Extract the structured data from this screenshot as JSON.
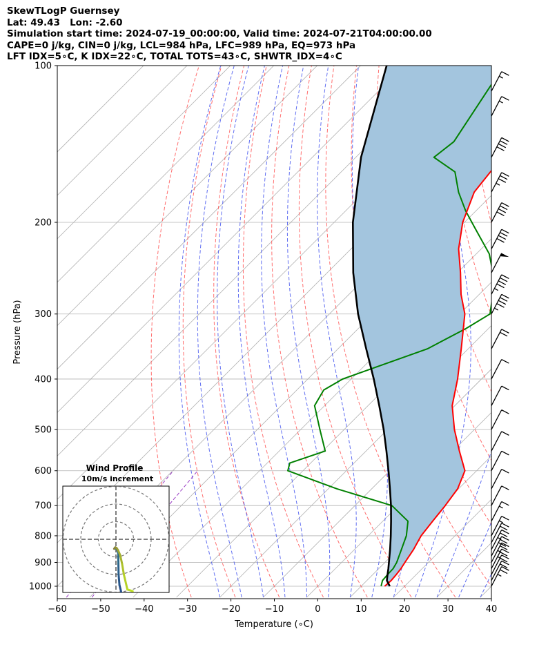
{
  "header": {
    "line1": "SkewTLogP Guernsey",
    "line2": "Lat: 49.43   Lon: -2.60",
    "line3": "Simulation start time: 2024-07-19_00:00:00, Valid time: 2024-07-21T04:00:00.00",
    "line4": "CAPE=0 j/kg, CIN=0 j/kg, LCL=984 hPa, LFC=989 hPa, EQ=973 hPa",
    "line5": "LFT IDX=5∘C, K IDX=22∘C, TOTAL TOTS=43∘C, SHWTR_IDX=4∘C"
  },
  "inset": {
    "title": "Wind Profile",
    "subtitle": "10m/s increment"
  },
  "colors": {
    "temperature": "#ff0000",
    "dewpoint": "#008000",
    "parcel": "#000000",
    "shade": "#a3c5de",
    "dry_adiabat": "#ff5555",
    "moist_adiabat": "#4455ee",
    "mixing_ratio": "#9a3cc4",
    "isotherm": "#b0b0b0"
  },
  "chart_data": {
    "type": "line",
    "title": "",
    "xlabel": "Temperature (∘C)",
    "ylabel": "Pressure (hPa)",
    "xlim": [
      -60,
      40
    ],
    "ylim": [
      1050,
      100
    ],
    "y_scale": "log",
    "grid": true,
    "x_ticks": [
      "−60",
      "−50",
      "−40",
      "−30",
      "−20",
      "−10",
      "0",
      "10",
      "20",
      "30",
      "40"
    ],
    "x_tick_values": [
      -60,
      -50,
      -40,
      -30,
      -20,
      -10,
      0,
      10,
      20,
      30,
      40
    ],
    "y_ticks": [
      "100",
      "200",
      "300",
      "400",
      "500",
      "600",
      "700",
      "800",
      "900",
      "1000"
    ],
    "y_tick_values": [
      100,
      200,
      300,
      400,
      500,
      600,
      700,
      800,
      900,
      1000
    ],
    "series": [
      {
        "key": "temperature",
        "points": [
          [
            1000,
            15.4
          ],
          [
            975,
            15.6
          ],
          [
            950,
            15.4
          ],
          [
            925,
            15.1
          ],
          [
            900,
            14.6
          ],
          [
            850,
            13.6
          ],
          [
            800,
            12.2
          ],
          [
            750,
            11.5
          ],
          [
            700,
            10.8
          ],
          [
            650,
            9.8
          ],
          [
            600,
            7.3
          ],
          [
            550,
            1.5
          ],
          [
            500,
            -4.6
          ],
          [
            450,
            -10.6
          ],
          [
            400,
            -15.5
          ],
          [
            350,
            -21.6
          ],
          [
            300,
            -28.8
          ],
          [
            275,
            -34.2
          ],
          [
            250,
            -39.3
          ],
          [
            225,
            -45.2
          ],
          [
            200,
            -50.4
          ],
          [
            175,
            -54.7
          ],
          [
            150,
            -56.3
          ],
          [
            125,
            -59.0
          ],
          [
            100,
            -60.4
          ]
        ]
      },
      {
        "key": "dewpoint",
        "points": [
          [
            1000,
            14.6
          ],
          [
            975,
            13.6
          ],
          [
            950,
            13.4
          ],
          [
            925,
            13.3
          ],
          [
            900,
            12.7
          ],
          [
            850,
            10.8
          ],
          [
            800,
            8.8
          ],
          [
            750,
            5.8
          ],
          [
            700,
            -1.5
          ],
          [
            650,
            -18.0
          ],
          [
            600,
            -33.5
          ],
          [
            580,
            -34.8
          ],
          [
            550,
            -29.4
          ],
          [
            500,
            -35.6
          ],
          [
            450,
            -42.3
          ],
          [
            420,
            -43.8
          ],
          [
            400,
            -42.0
          ],
          [
            380,
            -37.2
          ],
          [
            350,
            -29.4
          ],
          [
            320,
            -25.2
          ],
          [
            300,
            -23.0
          ],
          [
            260,
            -29.4
          ],
          [
            230,
            -37.0
          ],
          [
            205,
            -46.3
          ],
          [
            190,
            -52.4
          ],
          [
            175,
            -58.3
          ],
          [
            160,
            -63.8
          ],
          [
            150,
            -72.0
          ],
          [
            140,
            -71.0
          ],
          [
            100,
            -77.0
          ]
        ]
      },
      {
        "key": "parcel",
        "points": [
          [
            1000,
            16.6
          ],
          [
            975,
            14.6
          ],
          [
            950,
            13.4
          ],
          [
            925,
            12.2
          ],
          [
            900,
            10.9
          ],
          [
            850,
            8.2
          ],
          [
            800,
            5.2
          ],
          [
            750,
            1.9
          ],
          [
            700,
            -1.7
          ],
          [
            650,
            -5.8
          ],
          [
            600,
            -10.3
          ],
          [
            550,
            -15.3
          ],
          [
            500,
            -20.9
          ],
          [
            450,
            -27.4
          ],
          [
            400,
            -34.8
          ],
          [
            350,
            -43.5
          ],
          [
            300,
            -53.4
          ],
          [
            250,
            -64.0
          ],
          [
            200,
            -75.7
          ],
          [
            150,
            -88.8
          ],
          [
            100,
            -104.0
          ]
        ]
      }
    ],
    "wind_barbs": [
      {
        "p": 1000,
        "speed_kt": 25
      },
      {
        "p": 975,
        "speed_kt": 20
      },
      {
        "p": 950,
        "speed_kt": 20
      },
      {
        "p": 925,
        "speed_kt": 25
      },
      {
        "p": 900,
        "speed_kt": 25
      },
      {
        "p": 875,
        "speed_kt": 30
      },
      {
        "p": 850,
        "speed_kt": 25
      },
      {
        "p": 825,
        "speed_kt": 20
      },
      {
        "p": 800,
        "speed_kt": 15
      },
      {
        "p": 750,
        "speed_kt": 15
      },
      {
        "p": 700,
        "speed_kt": 10
      },
      {
        "p": 650,
        "speed_kt": 10
      },
      {
        "p": 600,
        "speed_kt": 10
      },
      {
        "p": 550,
        "speed_kt": 10
      },
      {
        "p": 500,
        "speed_kt": 10
      },
      {
        "p": 450,
        "speed_kt": 10
      },
      {
        "p": 400,
        "speed_kt": 10
      },
      {
        "p": 350,
        "speed_kt": 20
      },
      {
        "p": 300,
        "speed_kt": 45
      },
      {
        "p": 275,
        "speed_kt": 45
      },
      {
        "p": 250,
        "speed_kt": 50
      },
      {
        "p": 225,
        "speed_kt": 40
      },
      {
        "p": 200,
        "speed_kt": 40
      },
      {
        "p": 175,
        "speed_kt": 35
      },
      {
        "p": 150,
        "speed_kt": 40
      },
      {
        "p": 125,
        "speed_kt": 15
      },
      {
        "p": 112,
        "speed_kt": 15
      }
    ],
    "hodograph": {
      "rings_ms": [
        10,
        20,
        30
      ],
      "points_uv": [
        [
          3,
          -30
        ],
        [
          2,
          -26
        ],
        [
          1.5,
          -20
        ],
        [
          1.4,
          -14
        ],
        [
          1.3,
          -8
        ],
        [
          0.8,
          -6
        ],
        [
          0.3,
          -5
        ],
        [
          -0.2,
          -5.2
        ],
        [
          -0.6,
          -4.8
        ],
        [
          -1.0,
          -5.4
        ],
        [
          -0.3,
          -4.6
        ],
        [
          0.4,
          -5.0
        ],
        [
          1.2,
          -6.2
        ],
        [
          2.4,
          -9
        ],
        [
          3.5,
          -14
        ],
        [
          4.5,
          -20
        ],
        [
          6.5,
          -28.5
        ],
        [
          9.5,
          -29.5
        ]
      ]
    }
  }
}
